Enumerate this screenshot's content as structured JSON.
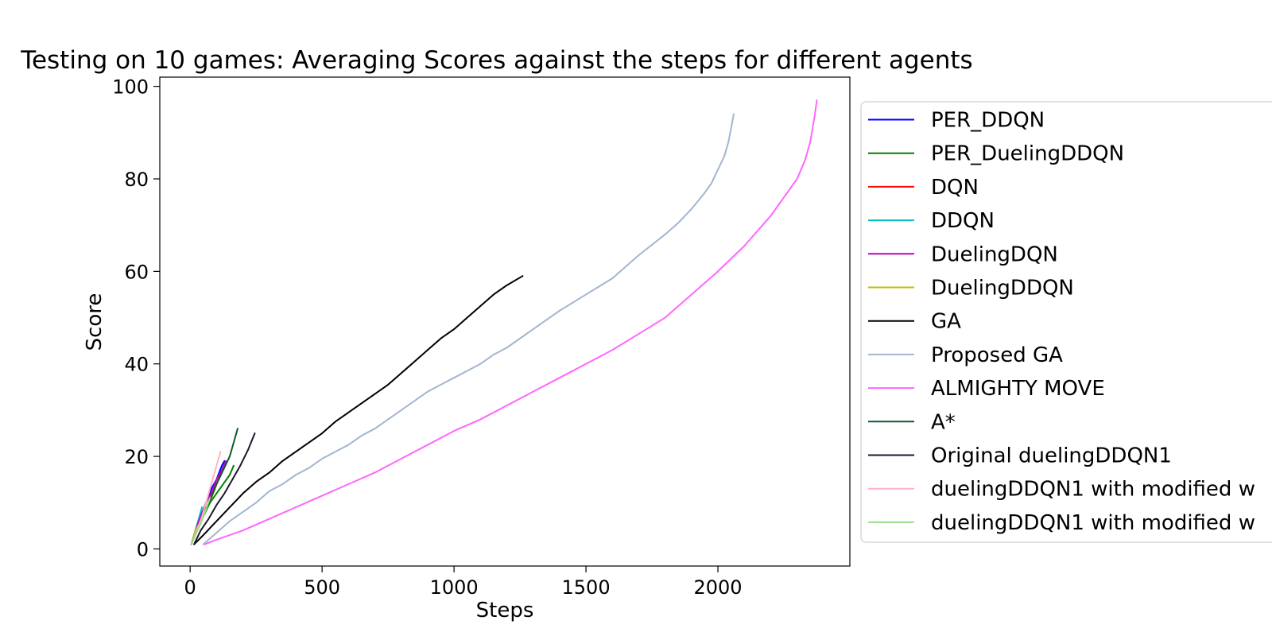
{
  "chart_data": {
    "type": "line",
    "title": "Testing on 10 games: Averaging Scores against the steps for different agents",
    "xlabel": "Steps",
    "ylabel": "Score",
    "xlim": [
      -115,
      2500
    ],
    "ylim": [
      -3.7,
      102
    ],
    "xticks": [
      0,
      500,
      1000,
      1500,
      2000
    ],
    "yticks": [
      0,
      20,
      40,
      60,
      80,
      100
    ],
    "grid": false,
    "legend_position": "right, outside plot area",
    "series": [
      {
        "name": "PER_DDQN",
        "color": "#0000ff",
        "x": [
          5,
          20,
          40,
          60,
          80,
          100,
          120,
          130
        ],
        "y": [
          1,
          4,
          7,
          10,
          13,
          15,
          18,
          19
        ]
      },
      {
        "name": "PER_DuelingDDQN",
        "color": "#008000",
        "x": [
          5,
          25,
          50,
          75,
          100,
          125,
          150,
          165
        ],
        "y": [
          1,
          4,
          7,
          10,
          12,
          14,
          16,
          18
        ]
      },
      {
        "name": "DQN",
        "color": "#ff0000",
        "x": [
          5,
          20,
          40,
          60,
          80,
          100,
          115
        ],
        "y": [
          1,
          4,
          7,
          9,
          11,
          14,
          16
        ]
      },
      {
        "name": "DDQN",
        "color": "#00bfbf",
        "x": [
          5,
          15,
          25,
          35,
          45
        ],
        "y": [
          1,
          3,
          5,
          7,
          9
        ]
      },
      {
        "name": "DuelingDQN",
        "color": "#bf00bf",
        "x": [
          5,
          20,
          40,
          60,
          80,
          100,
          120,
          135
        ],
        "y": [
          1,
          4,
          7,
          10,
          12,
          15,
          17,
          19
        ]
      },
      {
        "name": "DuelingDDQN",
        "color": "#bfbf00",
        "x": [
          5,
          20,
          40,
          60,
          80,
          95
        ],
        "y": [
          1,
          4,
          6,
          9,
          11,
          13
        ]
      },
      {
        "name": "GA",
        "color": "#000000",
        "x": [
          15,
          50,
          100,
          150,
          200,
          250,
          300,
          350,
          400,
          450,
          500,
          550,
          600,
          650,
          700,
          750,
          800,
          850,
          900,
          950,
          1000,
          1050,
          1100,
          1150,
          1200,
          1260
        ],
        "y": [
          1,
          3,
          6,
          9,
          12,
          14.5,
          16.5,
          19,
          21,
          23,
          25,
          27.5,
          29.5,
          31.5,
          33.5,
          35.5,
          38,
          40.5,
          43,
          45.5,
          47.5,
          50,
          52.5,
          55,
          57,
          59
        ]
      },
      {
        "name": "Proposed GA",
        "color": "#a3b5cf",
        "x": [
          50,
          100,
          150,
          200,
          250,
          300,
          350,
          400,
          450,
          500,
          550,
          600,
          650,
          700,
          750,
          800,
          850,
          900,
          950,
          1000,
          1050,
          1100,
          1150,
          1200,
          1300,
          1400,
          1500,
          1600,
          1700,
          1800,
          1850,
          1900,
          1950,
          1975,
          2000,
          2025,
          2040,
          2050,
          2060
        ],
        "y": [
          1,
          3.5,
          6,
          8,
          10,
          12.5,
          14,
          16,
          17.5,
          19.5,
          21,
          22.5,
          24.5,
          26,
          28,
          30,
          32,
          34,
          35.5,
          37,
          38.5,
          40,
          42,
          43.5,
          47.5,
          51.5,
          55,
          58.5,
          63.5,
          68,
          70.5,
          73.5,
          77,
          79,
          82,
          85,
          88,
          91,
          94
        ]
      },
      {
        "name": "ALMIGHTY MOVE",
        "color": "#ff66ff",
        "x": [
          55,
          100,
          150,
          200,
          300,
          400,
          500,
          600,
          700,
          800,
          900,
          1000,
          1100,
          1200,
          1300,
          1400,
          1500,
          1600,
          1700,
          1800,
          1900,
          2000,
          2100,
          2200,
          2250,
          2300,
          2330,
          2350,
          2365,
          2375
        ],
        "y": [
          1,
          2,
          3,
          4,
          6.5,
          9,
          11.5,
          14,
          16.5,
          19.5,
          22.5,
          25.5,
          28,
          31,
          34,
          37,
          40,
          43,
          46.5,
          50,
          55,
          60,
          65.5,
          72,
          76,
          80,
          84,
          88,
          93,
          97
        ]
      },
      {
        "name": "A*",
        "color": "#0c5c2c",
        "x": [
          5,
          25,
          50,
          75,
          100,
          125,
          150,
          160,
          170,
          180
        ],
        "y": [
          1,
          4,
          7.5,
          10.5,
          14,
          17,
          20,
          22,
          24,
          26
        ]
      },
      {
        "name": "Original duelingDDQN1",
        "color": "#1a1a2e",
        "x": [
          15,
          40,
          70,
          100,
          130,
          160,
          190,
          220,
          245
        ],
        "y": [
          1,
          4,
          6.5,
          9.5,
          12,
          15,
          18,
          21.5,
          25
        ]
      },
      {
        "name": "duelingDDQN1 with modified w",
        "color": "#ffb3c6",
        "x": [
          5,
          25,
          45,
          65,
          85,
          100,
          115
        ],
        "y": [
          1,
          4,
          7,
          11,
          15,
          18,
          21
        ]
      },
      {
        "name": "duelingDDQN1 with modified w",
        "color": "#99dd88",
        "x": [
          5,
          20,
          40,
          60,
          75
        ],
        "y": [
          1,
          3,
          5.5,
          8.5,
          11
        ]
      }
    ]
  }
}
